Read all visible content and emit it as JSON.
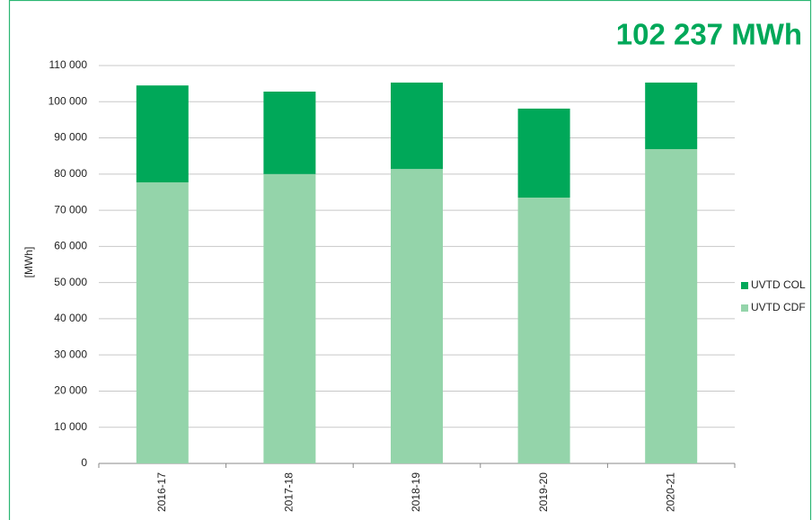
{
  "chart_data": {
    "type": "stacked-bar",
    "title": "102 237 MWh",
    "y_label": "[MWh]",
    "categories": [
      "2016-17",
      "2017-18",
      "2018-19",
      "2019-20",
      "2020-21"
    ],
    "series": [
      {
        "name": "UVTD CDF",
        "color": "#94d4aa",
        "values": [
          77700,
          80000,
          81400,
          73500,
          86900
        ]
      },
      {
        "name": "UVTD COL",
        "color": "#00a859",
        "values": [
          26800,
          22800,
          23900,
          24600,
          18400
        ]
      }
    ],
    "ylim": [
      0,
      110000
    ],
    "yticks": [
      0,
      {
        "value": 10000,
        "label": "10 000"
      },
      {
        "value": 20000,
        "label": "20 000"
      },
      {
        "value": 30000,
        "label": "30 000"
      },
      {
        "value": 40000,
        "label": "40 000"
      },
      {
        "value": 50000,
        "label": "50 000"
      },
      {
        "value": 60000,
        "label": "60 000"
      },
      {
        "value": 70000,
        "label": "70 000"
      },
      {
        "value": 80000,
        "label": "80 000"
      },
      {
        "value": 90000,
        "label": "90 000"
      },
      {
        "value": 100000,
        "label": "100 000"
      },
      {
        "value": 110000,
        "label": "110 000"
      }
    ],
    "grid": true,
    "legend": "right"
  }
}
